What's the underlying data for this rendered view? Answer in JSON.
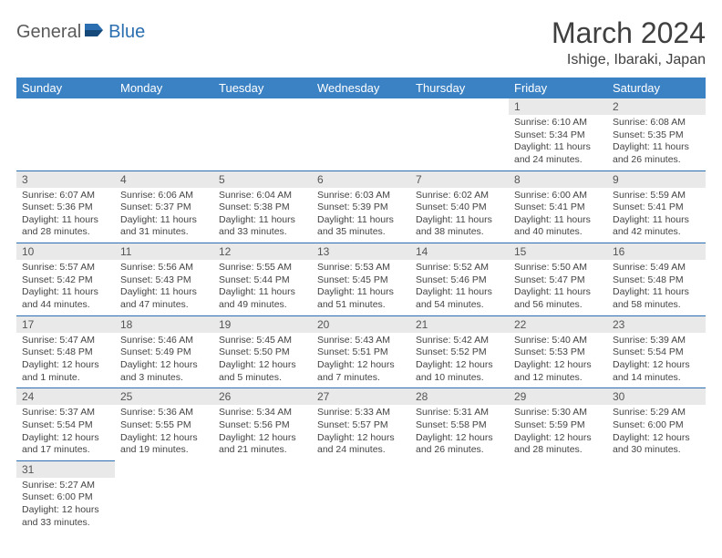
{
  "logo": {
    "word1": "General",
    "word2": "Blue"
  },
  "title": "March 2024",
  "location": "Ishige, Ibaraki, Japan",
  "colors": {
    "header_bg": "#3b82c4",
    "header_text": "#ffffff",
    "cell_border": "#2b6fb0",
    "daynum_bg": "#e9e9e9",
    "logo_gray": "#5a5a5a",
    "logo_blue": "#2b6fb0"
  },
  "weekdays": [
    "Sunday",
    "Monday",
    "Tuesday",
    "Wednesday",
    "Thursday",
    "Friday",
    "Saturday"
  ],
  "weeks": [
    [
      null,
      null,
      null,
      null,
      null,
      {
        "n": "1",
        "sr": "Sunrise: 6:10 AM",
        "ss": "Sunset: 5:34 PM",
        "d1": "Daylight: 11 hours",
        "d2": "and 24 minutes."
      },
      {
        "n": "2",
        "sr": "Sunrise: 6:08 AM",
        "ss": "Sunset: 5:35 PM",
        "d1": "Daylight: 11 hours",
        "d2": "and 26 minutes."
      }
    ],
    [
      {
        "n": "3",
        "sr": "Sunrise: 6:07 AM",
        "ss": "Sunset: 5:36 PM",
        "d1": "Daylight: 11 hours",
        "d2": "and 28 minutes."
      },
      {
        "n": "4",
        "sr": "Sunrise: 6:06 AM",
        "ss": "Sunset: 5:37 PM",
        "d1": "Daylight: 11 hours",
        "d2": "and 31 minutes."
      },
      {
        "n": "5",
        "sr": "Sunrise: 6:04 AM",
        "ss": "Sunset: 5:38 PM",
        "d1": "Daylight: 11 hours",
        "d2": "and 33 minutes."
      },
      {
        "n": "6",
        "sr": "Sunrise: 6:03 AM",
        "ss": "Sunset: 5:39 PM",
        "d1": "Daylight: 11 hours",
        "d2": "and 35 minutes."
      },
      {
        "n": "7",
        "sr": "Sunrise: 6:02 AM",
        "ss": "Sunset: 5:40 PM",
        "d1": "Daylight: 11 hours",
        "d2": "and 38 minutes."
      },
      {
        "n": "8",
        "sr": "Sunrise: 6:00 AM",
        "ss": "Sunset: 5:41 PM",
        "d1": "Daylight: 11 hours",
        "d2": "and 40 minutes."
      },
      {
        "n": "9",
        "sr": "Sunrise: 5:59 AM",
        "ss": "Sunset: 5:41 PM",
        "d1": "Daylight: 11 hours",
        "d2": "and 42 minutes."
      }
    ],
    [
      {
        "n": "10",
        "sr": "Sunrise: 5:57 AM",
        "ss": "Sunset: 5:42 PM",
        "d1": "Daylight: 11 hours",
        "d2": "and 44 minutes."
      },
      {
        "n": "11",
        "sr": "Sunrise: 5:56 AM",
        "ss": "Sunset: 5:43 PM",
        "d1": "Daylight: 11 hours",
        "d2": "and 47 minutes."
      },
      {
        "n": "12",
        "sr": "Sunrise: 5:55 AM",
        "ss": "Sunset: 5:44 PM",
        "d1": "Daylight: 11 hours",
        "d2": "and 49 minutes."
      },
      {
        "n": "13",
        "sr": "Sunrise: 5:53 AM",
        "ss": "Sunset: 5:45 PM",
        "d1": "Daylight: 11 hours",
        "d2": "and 51 minutes."
      },
      {
        "n": "14",
        "sr": "Sunrise: 5:52 AM",
        "ss": "Sunset: 5:46 PM",
        "d1": "Daylight: 11 hours",
        "d2": "and 54 minutes."
      },
      {
        "n": "15",
        "sr": "Sunrise: 5:50 AM",
        "ss": "Sunset: 5:47 PM",
        "d1": "Daylight: 11 hours",
        "d2": "and 56 minutes."
      },
      {
        "n": "16",
        "sr": "Sunrise: 5:49 AM",
        "ss": "Sunset: 5:48 PM",
        "d1": "Daylight: 11 hours",
        "d2": "and 58 minutes."
      }
    ],
    [
      {
        "n": "17",
        "sr": "Sunrise: 5:47 AM",
        "ss": "Sunset: 5:48 PM",
        "d1": "Daylight: 12 hours",
        "d2": "and 1 minute."
      },
      {
        "n": "18",
        "sr": "Sunrise: 5:46 AM",
        "ss": "Sunset: 5:49 PM",
        "d1": "Daylight: 12 hours",
        "d2": "and 3 minutes."
      },
      {
        "n": "19",
        "sr": "Sunrise: 5:45 AM",
        "ss": "Sunset: 5:50 PM",
        "d1": "Daylight: 12 hours",
        "d2": "and 5 minutes."
      },
      {
        "n": "20",
        "sr": "Sunrise: 5:43 AM",
        "ss": "Sunset: 5:51 PM",
        "d1": "Daylight: 12 hours",
        "d2": "and 7 minutes."
      },
      {
        "n": "21",
        "sr": "Sunrise: 5:42 AM",
        "ss": "Sunset: 5:52 PM",
        "d1": "Daylight: 12 hours",
        "d2": "and 10 minutes."
      },
      {
        "n": "22",
        "sr": "Sunrise: 5:40 AM",
        "ss": "Sunset: 5:53 PM",
        "d1": "Daylight: 12 hours",
        "d2": "and 12 minutes."
      },
      {
        "n": "23",
        "sr": "Sunrise: 5:39 AM",
        "ss": "Sunset: 5:54 PM",
        "d1": "Daylight: 12 hours",
        "d2": "and 14 minutes."
      }
    ],
    [
      {
        "n": "24",
        "sr": "Sunrise: 5:37 AM",
        "ss": "Sunset: 5:54 PM",
        "d1": "Daylight: 12 hours",
        "d2": "and 17 minutes."
      },
      {
        "n": "25",
        "sr": "Sunrise: 5:36 AM",
        "ss": "Sunset: 5:55 PM",
        "d1": "Daylight: 12 hours",
        "d2": "and 19 minutes."
      },
      {
        "n": "26",
        "sr": "Sunrise: 5:34 AM",
        "ss": "Sunset: 5:56 PM",
        "d1": "Daylight: 12 hours",
        "d2": "and 21 minutes."
      },
      {
        "n": "27",
        "sr": "Sunrise: 5:33 AM",
        "ss": "Sunset: 5:57 PM",
        "d1": "Daylight: 12 hours",
        "d2": "and 24 minutes."
      },
      {
        "n": "28",
        "sr": "Sunrise: 5:31 AM",
        "ss": "Sunset: 5:58 PM",
        "d1": "Daylight: 12 hours",
        "d2": "and 26 minutes."
      },
      {
        "n": "29",
        "sr": "Sunrise: 5:30 AM",
        "ss": "Sunset: 5:59 PM",
        "d1": "Daylight: 12 hours",
        "d2": "and 28 minutes."
      },
      {
        "n": "30",
        "sr": "Sunrise: 5:29 AM",
        "ss": "Sunset: 6:00 PM",
        "d1": "Daylight: 12 hours",
        "d2": "and 30 minutes."
      }
    ],
    [
      {
        "n": "31",
        "sr": "Sunrise: 5:27 AM",
        "ss": "Sunset: 6:00 PM",
        "d1": "Daylight: 12 hours",
        "d2": "and 33 minutes."
      },
      null,
      null,
      null,
      null,
      null,
      null
    ]
  ]
}
